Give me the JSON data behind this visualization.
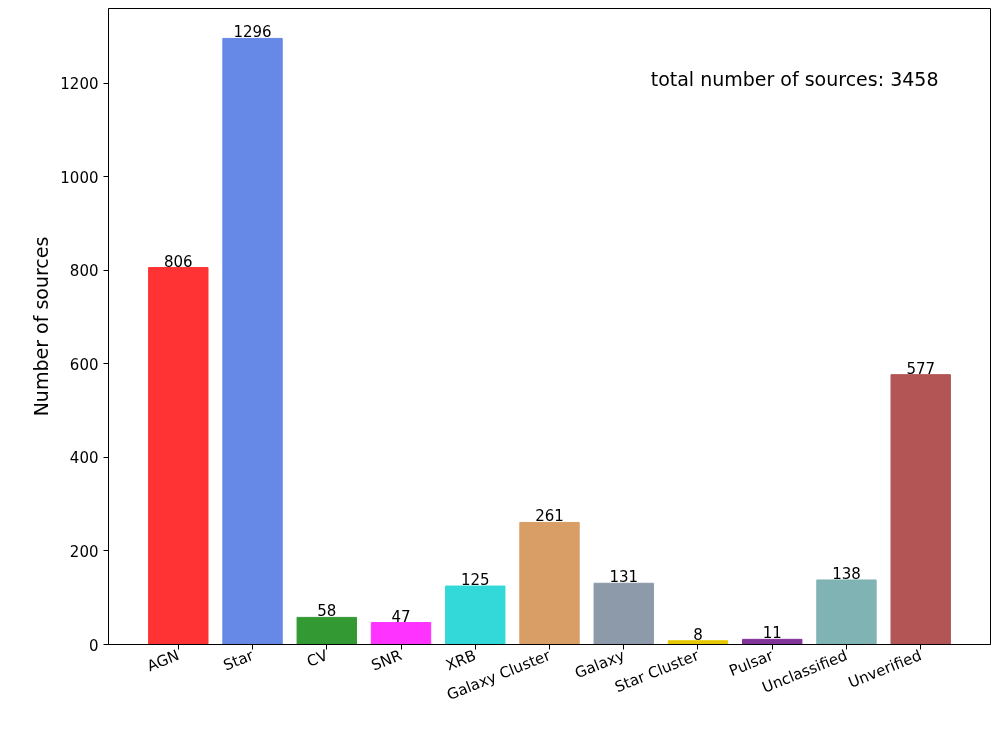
{
  "chart_data": {
    "type": "bar",
    "ylabel": "Number of sources",
    "categories": [
      "AGN",
      "Star",
      "CV",
      "SNR",
      "XRB",
      "Galaxy Cluster",
      "Galaxy",
      "Star Cluster",
      "Pulsar",
      "Unclassified",
      "Unverified"
    ],
    "values": [
      806,
      1296,
      58,
      47,
      125,
      261,
      131,
      8,
      11,
      138,
      577
    ],
    "colors": [
      "#ff3333",
      "#6688e6",
      "#339933",
      "#ff33ff",
      "#33d9d9",
      "#d99e66",
      "#8c9aaa",
      "#e6c800",
      "#803399",
      "#80b3b3",
      "#b35555"
    ],
    "ylim": [
      0,
      1360
    ],
    "yticks": [
      0,
      200,
      400,
      600,
      800,
      1000,
      1200
    ],
    "data_labels": true,
    "grid": false,
    "annotations": [
      "total number of sources: 3458"
    ]
  }
}
